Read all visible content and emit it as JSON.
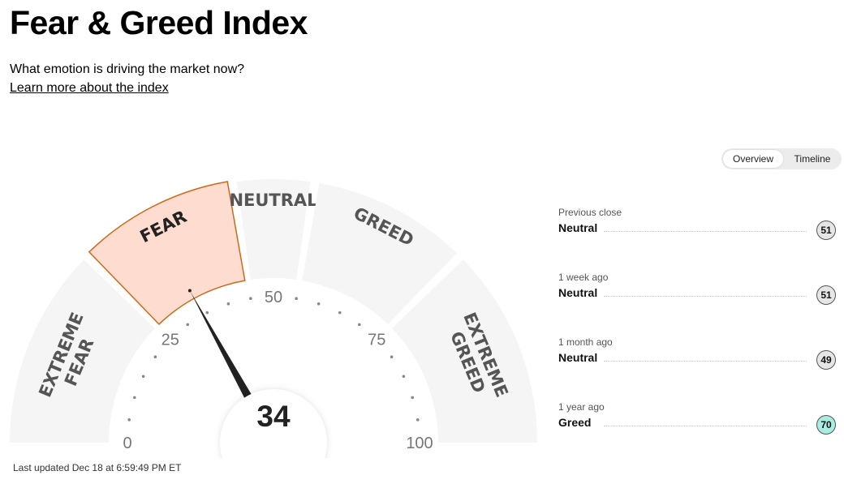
{
  "header": {
    "title": "Fear & Greed Index",
    "subtitle": "What emotion is driving the market now?",
    "learn_more": "Learn more about the index"
  },
  "view_toggle": {
    "overview": "Overview",
    "timeline": "Timeline",
    "selected": "Overview"
  },
  "gauge": {
    "value": 34,
    "value_label": "34",
    "active_segment": "FEAR",
    "segments": [
      {
        "label": "EXTREME FEAR",
        "line1": "EXTREME",
        "line2": "FEAR",
        "from": 0,
        "to": 25
      },
      {
        "label": "FEAR",
        "line1": "FEAR",
        "line2": "",
        "from": 25,
        "to": 45
      },
      {
        "label": "NEUTRAL",
        "line1": "NEUTRAL",
        "line2": "",
        "from": 45,
        "to": 55
      },
      {
        "label": "GREED",
        "line1": "GREED",
        "line2": "",
        "from": 55,
        "to": 75
      },
      {
        "label": "EXTREME GREED",
        "line1": "EXTREME",
        "line2": "GREED",
        "from": 75,
        "to": 100
      }
    ],
    "ticks": [
      "0",
      "25",
      "50",
      "75",
      "100"
    ],
    "colors": {
      "segment": "#f5f5f5",
      "active_fill": "#ffdcd0",
      "active_stroke": "#cc6a1a",
      "needle": "#222222",
      "text": "#555555"
    }
  },
  "last_updated": "Last updated Dec 18 at 6:59:49 PM ET",
  "history": [
    {
      "label": "Previous close",
      "status": "Neutral",
      "value": "51",
      "tone": "neutral"
    },
    {
      "label": "1 week ago",
      "status": "Neutral",
      "value": "51",
      "tone": "neutral"
    },
    {
      "label": "1 month ago",
      "status": "Neutral",
      "value": "49",
      "tone": "neutral"
    },
    {
      "label": "1 year ago",
      "status": "Greed",
      "value": "70",
      "tone": "greed"
    }
  ]
}
